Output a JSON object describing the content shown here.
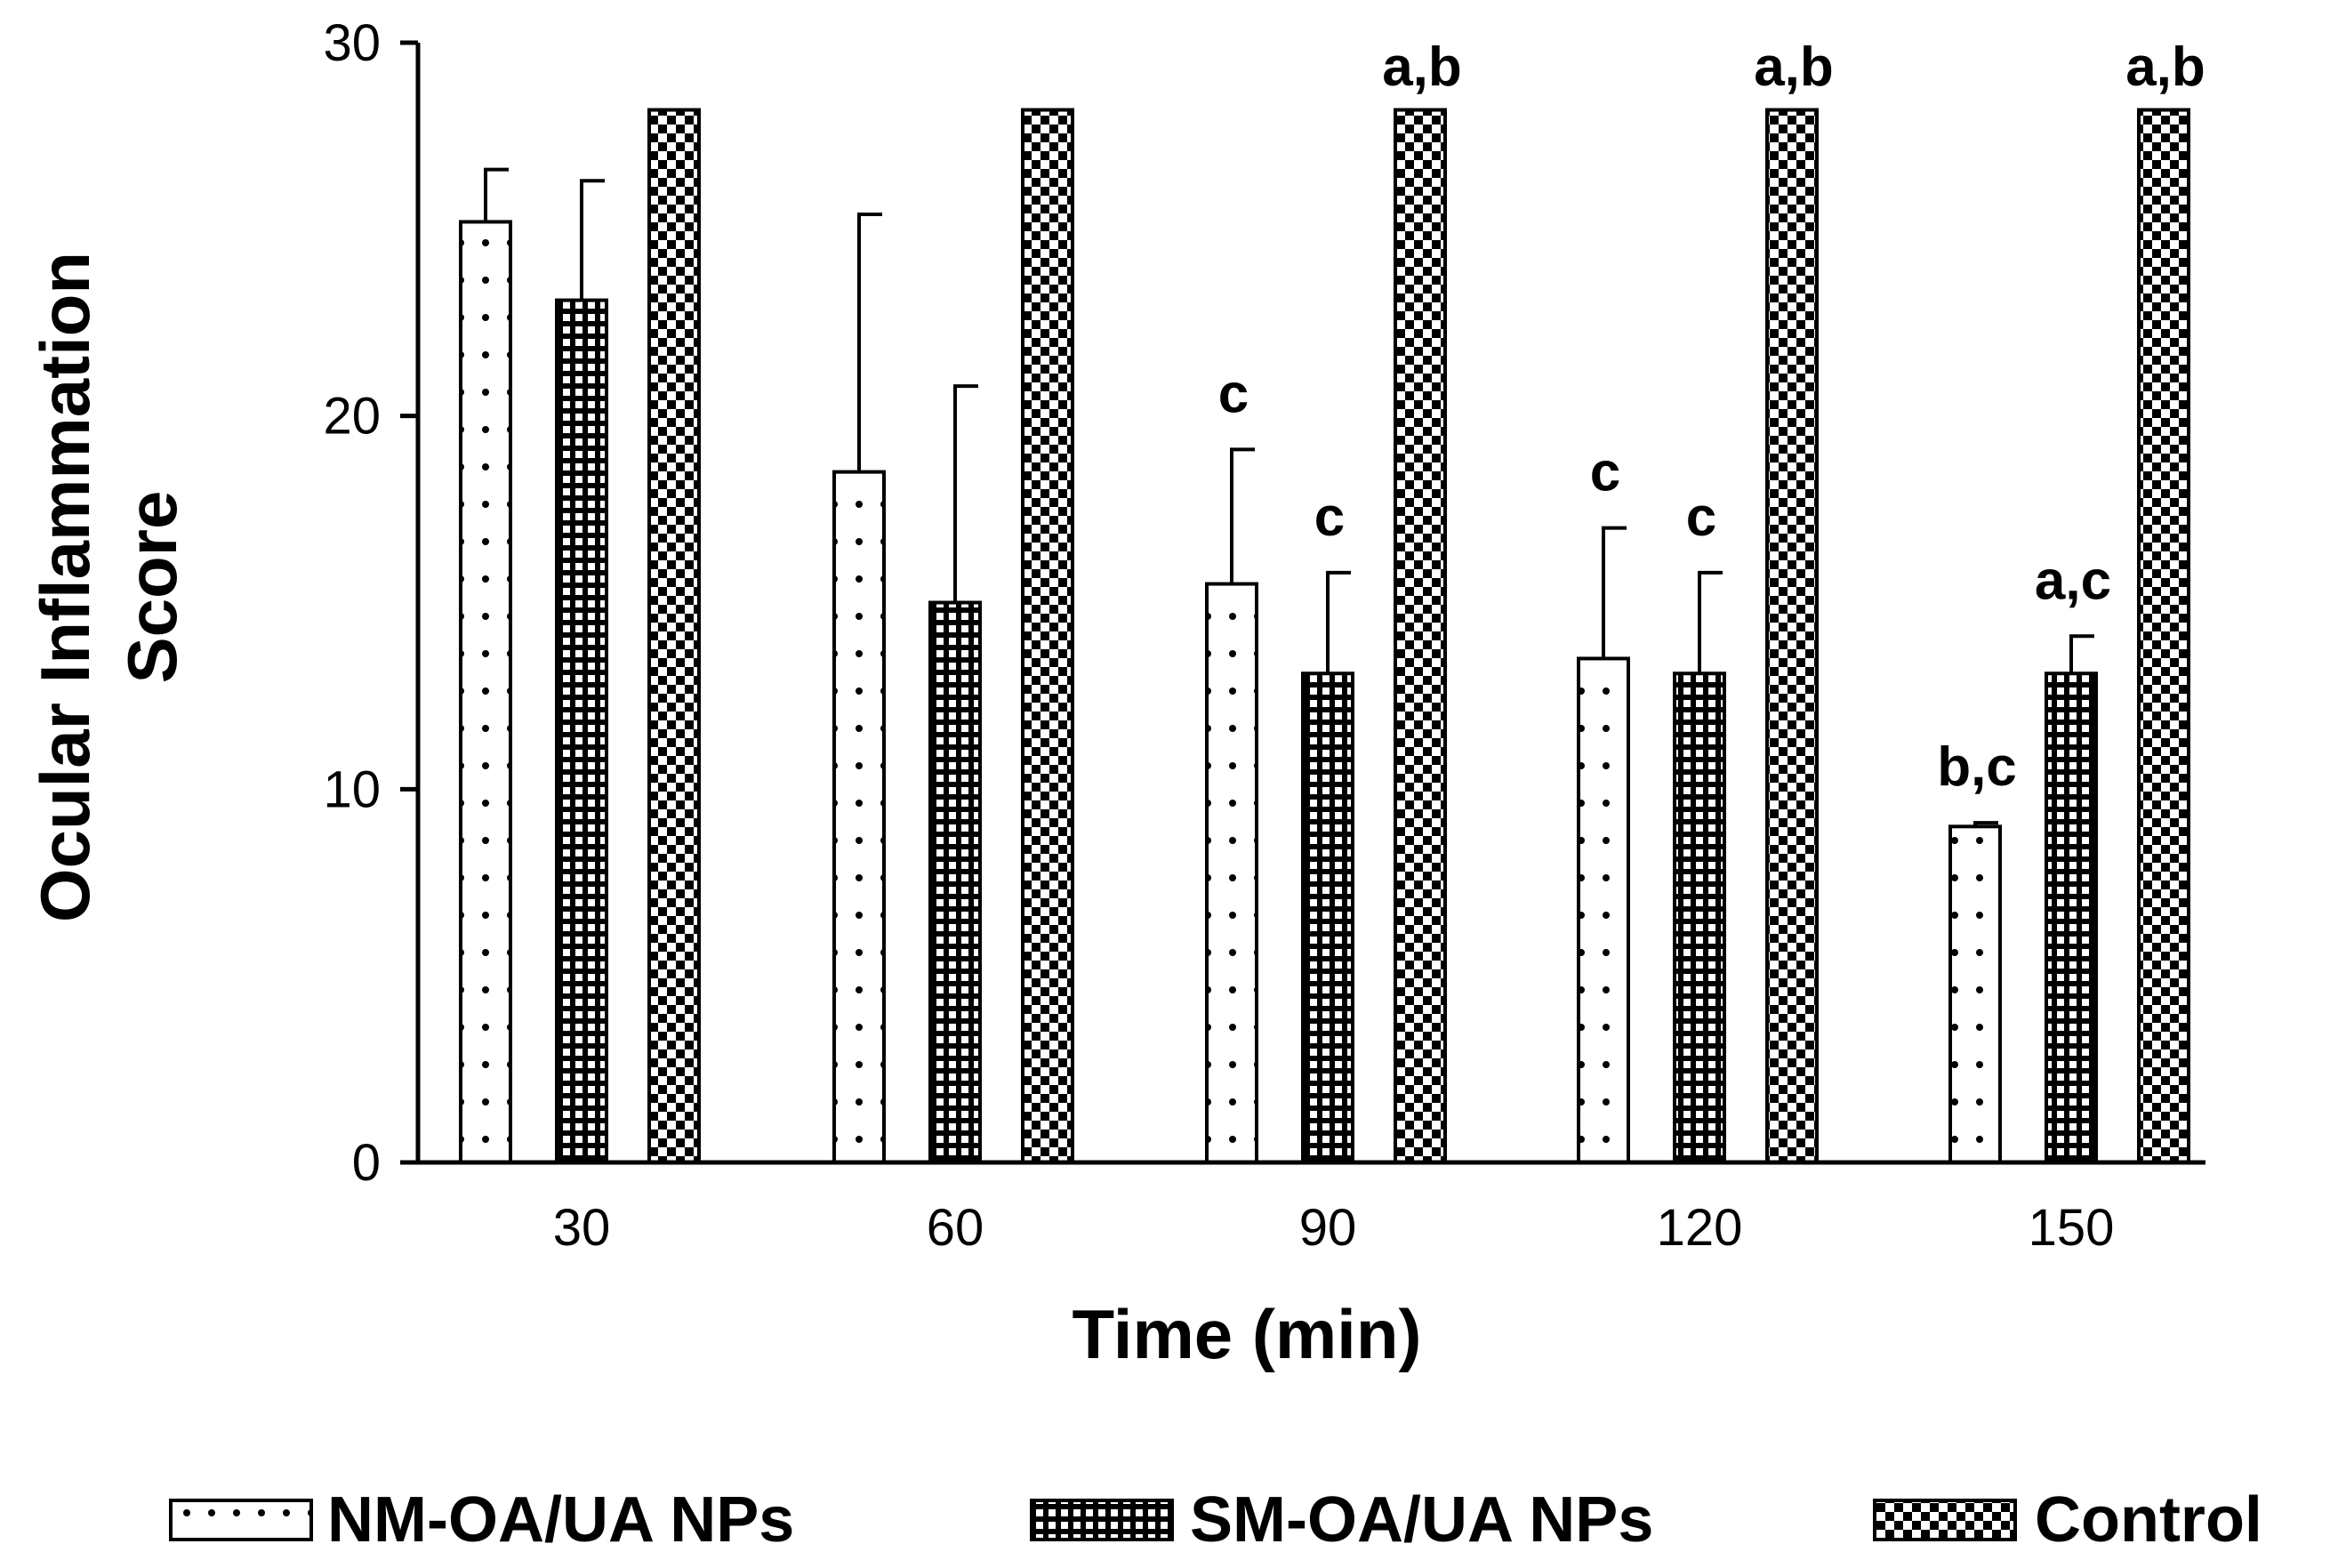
{
  "chart_data": {
    "type": "bar",
    "xlabel": "Time (min)",
    "ylabel_lines": [
      "Ocular Inflammation",
      "Score"
    ],
    "ylim": [
      0,
      30
    ],
    "yticks": [
      0,
      10,
      20,
      30
    ],
    "categories": [
      "30",
      "60",
      "90",
      "120",
      "150"
    ],
    "series": [
      {
        "name": "NM-OA/UA NPs",
        "pattern": "sparse-dots",
        "values": [
          25.2,
          18.5,
          15.5,
          13.5,
          9.0
        ],
        "errors": [
          1.4,
          6.9,
          3.6,
          3.5,
          0.1
        ],
        "labels": [
          "",
          "",
          "c",
          "c",
          "b,c"
        ]
      },
      {
        "name": "SM-OA/UA NPs",
        "pattern": "dense-dots",
        "values": [
          23.1,
          15.0,
          13.1,
          13.1,
          13.1
        ],
        "errors": [
          3.2,
          5.8,
          2.7,
          2.7,
          1.0
        ],
        "labels": [
          "",
          "",
          "c",
          "c",
          "a,c"
        ]
      },
      {
        "name": "Control",
        "pattern": "checker",
        "values": [
          28.2,
          28.2,
          28.2,
          28.2,
          28.2
        ],
        "errors": [
          0,
          0,
          0,
          0,
          0
        ],
        "labels": [
          "",
          "",
          "a,b",
          "a,b",
          "a,b"
        ]
      }
    ],
    "legend_position": "bottom"
  }
}
